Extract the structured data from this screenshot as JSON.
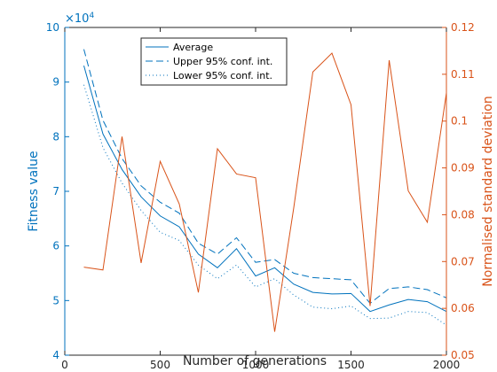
{
  "chart_data": {
    "type": "line",
    "xlabel": "Number of generations",
    "ylabel_left": "Fitness value",
    "ylabel_right": "Normalised standard deviation",
    "exponent_label": "×10",
    "exponent_power": "4",
    "xlim": [
      0,
      2000
    ],
    "ylim_left": [
      4,
      10
    ],
    "ylim_right": [
      0.05,
      0.12
    ],
    "x_ticks": [
      0,
      500,
      1000,
      1500,
      2000
    ],
    "y_left_ticks": [
      4,
      5,
      6,
      7,
      8,
      9,
      10
    ],
    "y_right_ticks": [
      0.05,
      0.06,
      0.07,
      0.08,
      0.09,
      0.1,
      0.11,
      0.12
    ],
    "legend_position": "top-center",
    "grid": false,
    "colors": {
      "left": "#0072bd",
      "right": "#d95319",
      "axis": "#262626"
    },
    "x": [
      100,
      200,
      300,
      400,
      500,
      600,
      700,
      800,
      900,
      1000,
      1100,
      1200,
      1300,
      1400,
      1500,
      1600,
      1700,
      1800,
      1900,
      2000
    ],
    "series": [
      {
        "name": "Average",
        "axis": "left",
        "style": "solid",
        "values": [
          9.3,
          8.05,
          7.4,
          6.9,
          6.55,
          6.35,
          5.85,
          5.6,
          5.95,
          5.45,
          5.6,
          5.3,
          5.15,
          5.12,
          5.13,
          4.8,
          4.92,
          5.02,
          4.98,
          4.8
        ]
      },
      {
        "name": "Upper 95% conf. int.",
        "axis": "left",
        "style": "dashed",
        "values": [
          9.6,
          8.3,
          7.6,
          7.1,
          6.8,
          6.6,
          6.05,
          5.85,
          6.15,
          5.7,
          5.75,
          5.5,
          5.42,
          5.4,
          5.38,
          4.95,
          5.22,
          5.25,
          5.2,
          5.05
        ]
      },
      {
        "name": "Lower 95% conf. int.",
        "axis": "left",
        "style": "dotted",
        "values": [
          8.95,
          7.8,
          7.15,
          6.65,
          6.25,
          6.1,
          5.65,
          5.4,
          5.65,
          5.25,
          5.4,
          5.1,
          4.88,
          4.85,
          4.9,
          4.67,
          4.68,
          4.8,
          4.78,
          4.55
        ]
      },
      {
        "axis": "right",
        "style": "solid",
        "values": [
          0.0688,
          0.0682,
          0.0967,
          0.0697,
          0.0914,
          0.0823,
          0.0634,
          0.0941,
          0.0887,
          0.0879,
          0.055,
          0.0815,
          0.1105,
          0.1145,
          0.1035,
          0.0605,
          0.113,
          0.0851,
          0.0784,
          0.106
        ]
      }
    ]
  }
}
